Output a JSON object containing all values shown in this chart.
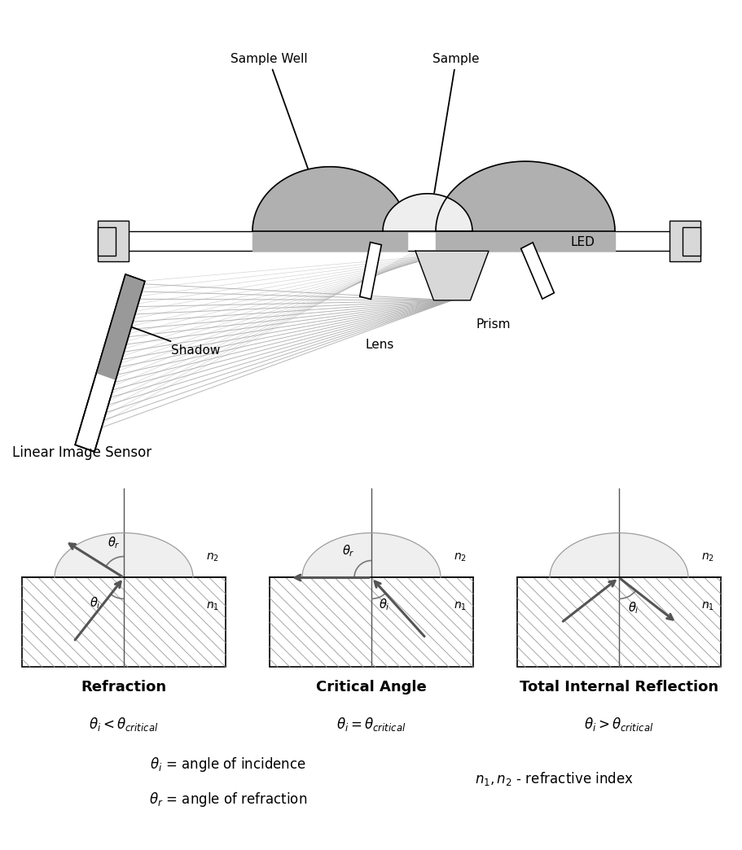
{
  "bg_color": "#ffffff",
  "line_color": "#000000",
  "gray_fill": "#b0b0b0",
  "light_gray_fill": "#d8d8d8",
  "white_fill": "#ffffff",
  "ray_color": "#aaaaaa",
  "dark_gray": "#606060",
  "sensor_shadow": "#999999",
  "fig_width": 9.12,
  "fig_height": 10.44,
  "labels": {
    "sample_well": "Sample Well",
    "sample": "Sample",
    "led": "LED",
    "prism": "Prism",
    "lens": "Lens",
    "shadow": "Shadow",
    "linear_image_sensor": "Linear Image Sensor"
  }
}
